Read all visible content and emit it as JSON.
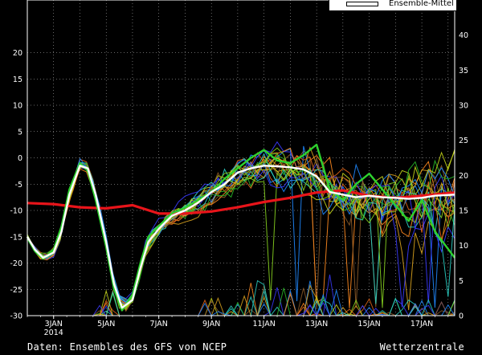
{
  "footer": {
    "source": "Daten: Ensembles des GFS von NCEP",
    "brand": "Wetterzentrale"
  },
  "legend": {
    "label": "Ensemble-Mittel",
    "color": "#ffffff"
  },
  "chart_data": {
    "type": "line",
    "x_tick_labels": [
      "3JAN",
      "5JAN",
      "7JAN",
      "9JAN",
      "11JAN",
      "13JAN",
      "15JAN",
      "17JAN"
    ],
    "x_year_label": "2014",
    "x_day_range": [
      2,
      18.25
    ],
    "y_left": {
      "ticks": [
        20,
        15,
        10,
        5,
        0,
        -5,
        -10,
        -15,
        -20,
        -25,
        -30
      ],
      "range": [
        -30,
        30
      ]
    },
    "y_right": {
      "ticks": [
        40,
        35,
        30,
        25,
        20,
        15,
        10,
        5,
        0
      ],
      "range": [
        0,
        45
      ]
    },
    "grid": true,
    "colors": {
      "background": "#000000",
      "grid": "#ffffff",
      "climate": "#e8141a",
      "mean": "#ffffff",
      "operational": "#2ed12e",
      "members": [
        "#ff8a1f",
        "#e2661a",
        "#d9a21e",
        "#8c5a28",
        "#2ad1c6",
        "#1f88ff",
        "#3a3aff",
        "#28b828",
        "#86d11f",
        "#c2d11a"
      ]
    },
    "series": [
      {
        "role": "climate",
        "x": [
          2,
          3,
          4,
          5,
          6,
          7,
          8,
          9,
          10,
          11,
          12,
          13,
          14,
          15,
          16,
          17,
          18.25
        ],
        "y": [
          -8.6,
          -8.8,
          -9.4,
          -9.6,
          -9.0,
          -10.6,
          -10.6,
          -10.2,
          -9.4,
          -8.4,
          -7.6,
          -6.6,
          -6.2,
          -7.2,
          -7.6,
          -7.2,
          -6.6
        ]
      },
      {
        "role": "mean",
        "x": [
          2,
          2.3,
          2.6,
          3,
          3.3,
          3.6,
          4,
          4.3,
          4.6,
          5,
          5.3,
          5.6,
          6,
          6.3,
          6.6,
          7,
          7.5,
          8,
          8.5,
          9,
          9.5,
          10,
          10.5,
          11,
          11.5,
          12,
          12.5,
          13,
          13.5,
          14,
          14.5,
          15,
          15.5,
          16,
          16.5,
          17,
          17.5,
          18.25
        ],
        "y": [
          -15,
          -17.5,
          -19,
          -18,
          -14,
          -7,
          -1.5,
          -2,
          -7,
          -16,
          -24,
          -28.5,
          -27,
          -21,
          -16,
          -13.5,
          -11,
          -10,
          -8.5,
          -6.5,
          -5,
          -2.8,
          -2,
          -1.5,
          -1.6,
          -1.8,
          -2.2,
          -3.5,
          -6.5,
          -7,
          -7.5,
          -7.2,
          -7.5,
          -7.6,
          -7.8,
          -7.6,
          -7.2,
          -7
        ]
      },
      {
        "role": "operational",
        "x": [
          2,
          2.3,
          2.6,
          3,
          3.3,
          3.6,
          4,
          4.3,
          4.6,
          5,
          5.3,
          5.6,
          6,
          6.3,
          6.6,
          7,
          7.5,
          8,
          8.5,
          9,
          9.5,
          10,
          10.5,
          11,
          11.5,
          12,
          12.5,
          13,
          13.5,
          14,
          14.5,
          15,
          15.5,
          16,
          16.5,
          17,
          17.5,
          18.25
        ],
        "y": [
          -15,
          -17.8,
          -19.2,
          -17.5,
          -13,
          -6,
          -1,
          -2.5,
          -8,
          -17,
          -25,
          -29,
          -26,
          -20,
          -15,
          -13,
          -10.5,
          -9.5,
          -8,
          -6.5,
          -4,
          -2,
          0,
          1.5,
          -0.5,
          -1,
          0.5,
          2.5,
          -6,
          -8,
          -5,
          -3,
          -6,
          -9,
          -12,
          -8,
          -14,
          -19
        ]
      }
    ]
  }
}
